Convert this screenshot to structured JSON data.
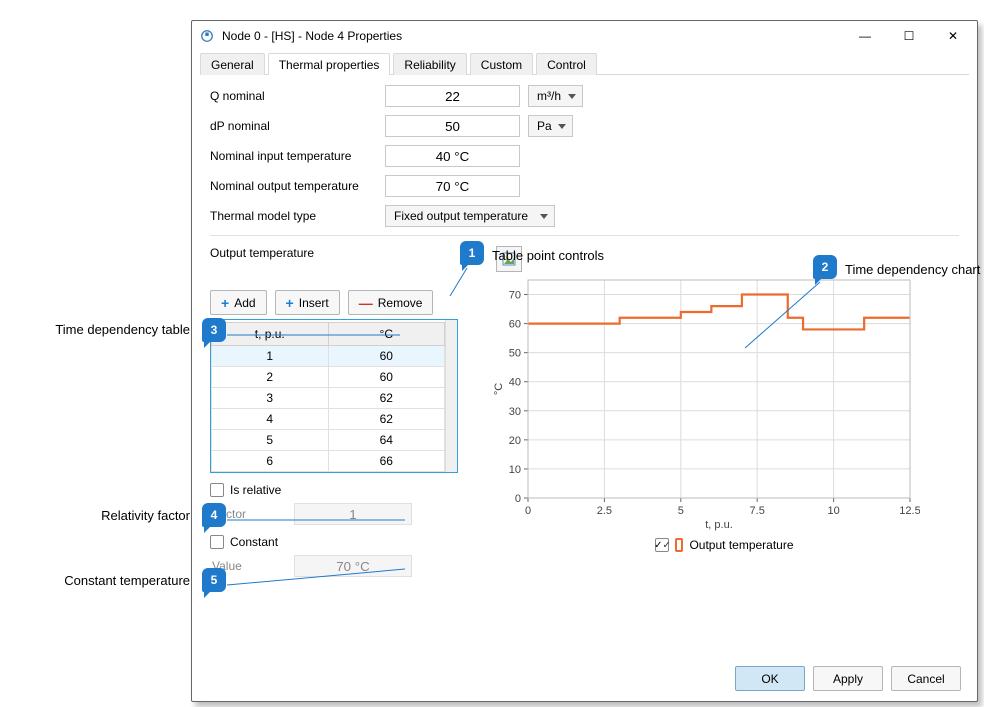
{
  "window": {
    "title": "Node 0 - [HS] - Node 4 Properties"
  },
  "tabs": {
    "items": [
      {
        "label": "General"
      },
      {
        "label": "Thermal properties"
      },
      {
        "label": "Reliability"
      },
      {
        "label": "Custom"
      },
      {
        "label": "Control"
      }
    ]
  },
  "fields": {
    "q_nominal": {
      "label": "Q nominal",
      "value": "22",
      "unit": "m³/h"
    },
    "dp_nominal": {
      "label": "dP nominal",
      "value": "50",
      "unit": "Pa"
    },
    "nom_input_temp": {
      "label": "Nominal input temperature",
      "value": "40 °C"
    },
    "nom_output_temp": {
      "label": "Nominal output temperature",
      "value": "70 °C"
    },
    "thermal_model": {
      "label": "Thermal model type",
      "value": "Fixed output temperature"
    },
    "output_temp_label": "Output temperature",
    "is_relative": {
      "label": "Is relative"
    },
    "factor": {
      "label": "Factor",
      "value": "1"
    },
    "constant": {
      "label": "Constant"
    },
    "value": {
      "label": "Value",
      "value": "70 °C"
    }
  },
  "buttons": {
    "add": "Add",
    "insert": "Insert",
    "remove": "Remove",
    "ok": "OK",
    "apply": "Apply",
    "cancel": "Cancel"
  },
  "table": {
    "headers": {
      "t": "t, p.u.",
      "c": "°C"
    },
    "rows": [
      {
        "t": "1",
        "c": "60"
      },
      {
        "t": "2",
        "c": "60"
      },
      {
        "t": "3",
        "c": "62"
      },
      {
        "t": "4",
        "c": "62"
      },
      {
        "t": "5",
        "c": "64"
      },
      {
        "t": "6",
        "c": "66"
      }
    ]
  },
  "chart": {
    "type": "step-line",
    "series_color": "#ec6b2d",
    "grid_color": "#dcdcdc",
    "axis_color": "#666666",
    "background": "#ffffff",
    "xlabel": "t, p.u.",
    "ylabel": "°C",
    "xlim": [
      0,
      12.5
    ],
    "ylim": [
      0,
      75
    ],
    "xticks": [
      0,
      2.5,
      5,
      7.5,
      10,
      12.5
    ],
    "yticks": [
      0,
      10,
      20,
      30,
      40,
      50,
      60,
      70
    ],
    "data_t": [
      0,
      1,
      2,
      3,
      4,
      5,
      6,
      7,
      8,
      8.5,
      9,
      10,
      11,
      12,
      12.5
    ],
    "data_c": [
      60,
      60,
      60,
      62,
      62,
      64,
      66,
      70,
      70,
      62,
      58,
      58,
      62,
      62,
      62
    ],
    "legend": "Output temperature"
  },
  "callouts": {
    "c1": {
      "num": "1",
      "text": "Table point controls"
    },
    "c2": {
      "num": "2",
      "text": "Time dependency chart"
    },
    "c3": {
      "num": "3",
      "text": "Time dependency table"
    },
    "c4": {
      "num": "4",
      "text": "Relativity factor"
    },
    "c5": {
      "num": "5",
      "text": "Constant temperature"
    }
  }
}
